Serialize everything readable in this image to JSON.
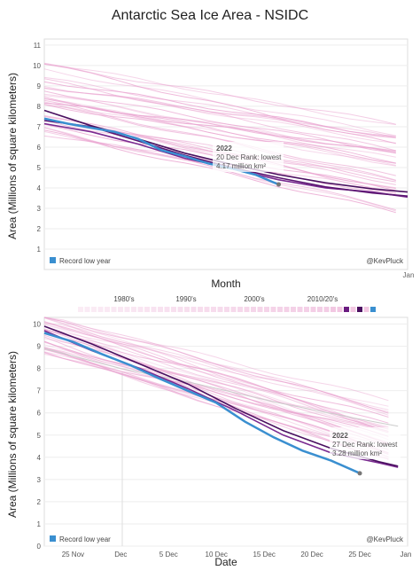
{
  "chart_data": [
    {
      "type": "line",
      "title": "Antarctic Sea Ice Area - NSIDC",
      "xlabel": "Month",
      "ylabel": "Area (Millions of square kilometers)",
      "yticks": [
        "1",
        "2",
        "3",
        "4",
        "5",
        "6",
        "7",
        "8",
        "9",
        "10",
        "11"
      ],
      "xticks": [
        "Jan"
      ],
      "ylim": [
        0,
        11.3
      ],
      "xlim_days": [
        0,
        31
      ],
      "legend": {
        "label": "Record low year",
        "position": "bottom-left"
      },
      "credit": "@KevPluck",
      "annotation": {
        "title": "2022",
        "line1": "20 Dec Rank: lowest",
        "line2": "4.17 million km²"
      },
      "colors": {
        "pink": "#e9a2cf",
        "dark_purple": "#4a1060",
        "purple": "#6a1b80",
        "record_low": "#3a8fd0"
      },
      "series": [
        {
          "name": "2022",
          "role": "record_low",
          "x": [
            0,
            2,
            4,
            6,
            8,
            10,
            12,
            14,
            16,
            18,
            20
          ],
          "y": [
            7.4,
            7.15,
            6.95,
            6.75,
            6.4,
            5.85,
            5.55,
            5.2,
            4.95,
            4.65,
            4.17
          ]
        },
        {
          "name": "",
          "role": "dark",
          "x": [
            0,
            4,
            8,
            12,
            16,
            20,
            24,
            28,
            31
          ],
          "y": [
            7.8,
            7.05,
            6.4,
            5.7,
            5.15,
            4.65,
            4.25,
            3.95,
            3.8
          ]
        },
        {
          "name": "",
          "role": "dark2",
          "x": [
            0,
            4,
            8,
            12,
            16,
            20,
            24,
            28,
            31
          ],
          "y": [
            7.3,
            7.0,
            6.3,
            5.6,
            5.0,
            4.5,
            4.05,
            3.75,
            3.6
          ]
        },
        {
          "name": "",
          "role": "purple",
          "x": [
            0,
            4,
            8,
            12,
            16,
            20,
            24,
            28,
            31
          ],
          "y": [
            7.15,
            6.75,
            6.15,
            5.45,
            4.95,
            4.4,
            4.0,
            3.8,
            3.55
          ]
        }
      ]
    },
    {
      "type": "line",
      "xlabel": "Date",
      "ylabel": "Area (Millions of square kilometers)",
      "yticks": [
        "0",
        "1",
        "2",
        "3",
        "4",
        "5",
        "6",
        "7",
        "8",
        "9",
        "10"
      ],
      "xticks": [
        "25 Nov",
        "Dec",
        "5 Dec",
        "10 Dec",
        "15 Dec",
        "20 Dec",
        "25 Dec",
        "Jan"
      ],
      "ylim": [
        0,
        10.3
      ],
      "legend": {
        "label": "Record low year",
        "position": "bottom-left"
      },
      "decades": [
        "1980's",
        "1990's",
        "2000's",
        "2010/20's"
      ],
      "credit": "@KevPluck",
      "annotation": {
        "title": "2022",
        "line1": "27 Dec Rank: lowest",
        "line2": "3.28 million km²"
      },
      "series": [
        {
          "name": "2022",
          "role": "record_low",
          "x": [
            0,
            3,
            6,
            9,
            12,
            15,
            18,
            21,
            24,
            27,
            30,
            33
          ],
          "y": [
            9.6,
            9.2,
            8.65,
            8.15,
            7.55,
            7.0,
            6.45,
            5.6,
            4.9,
            4.3,
            3.85,
            3.28
          ]
        },
        {
          "name": "",
          "role": "dark",
          "x": [
            0,
            5,
            10,
            15,
            20,
            25,
            30,
            35,
            37
          ],
          "y": [
            9.9,
            9.1,
            8.2,
            7.3,
            6.2,
            5.2,
            4.4,
            3.8,
            3.6
          ]
        },
        {
          "name": "",
          "role": "purple",
          "x": [
            0,
            5,
            10,
            15,
            20,
            25,
            30,
            35,
            37
          ],
          "y": [
            9.7,
            8.8,
            8.0,
            7.1,
            6.1,
            5.0,
            4.2,
            3.75,
            3.55
          ]
        }
      ]
    }
  ]
}
